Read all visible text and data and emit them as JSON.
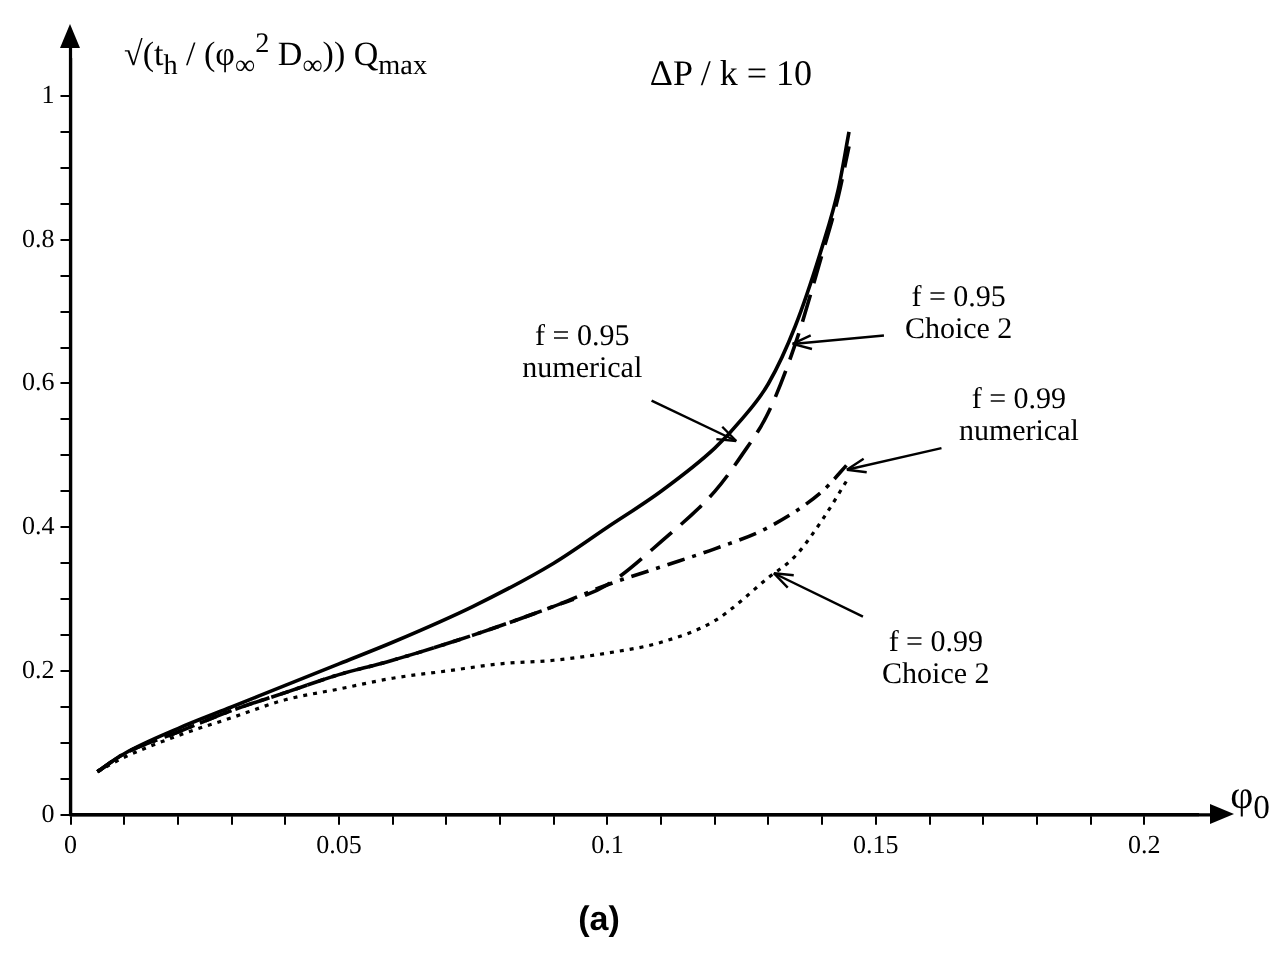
{
  "chart_data": {
    "type": "line",
    "title": "ΔP / k = 10",
    "xlabel": "φ$_{0}$",
    "ylabel": "√(t$_{h}$ / (φ$_{∞}$$^{2}$ D$_{∞}$)) Q$_{max}$",
    "xlim": [
      0,
      0.21
    ],
    "xticks": [
      0,
      {
        "value": 0.01,
        "label": null
      },
      {
        "value": 0.02,
        "label": null
      },
      {
        "value": 0.03,
        "label": null
      },
      {
        "value": 0.04,
        "label": null
      },
      0.05,
      {
        "value": 0.06,
        "label": null
      },
      {
        "value": 0.07,
        "label": null
      },
      {
        "value": 0.08,
        "label": null
      },
      {
        "value": 0.09,
        "label": null
      },
      0.1,
      {
        "value": 0.11,
        "label": null
      },
      {
        "value": 0.12,
        "label": null
      },
      {
        "value": 0.13,
        "label": null
      },
      {
        "value": 0.14,
        "label": null
      },
      0.15,
      {
        "value": 0.16,
        "label": null
      },
      {
        "value": 0.17,
        "label": null
      },
      {
        "value": 0.18,
        "label": null
      },
      {
        "value": 0.19,
        "label": null
      },
      0.2
    ],
    "ylim": [
      0,
      1.05
    ],
    "yticks": [
      0,
      {
        "value": 0.05,
        "label": null
      },
      {
        "value": 0.1,
        "label": null
      },
      {
        "value": 0.15,
        "label": null
      },
      0.2,
      {
        "value": 0.25,
        "label": null
      },
      {
        "value": 0.3,
        "label": null
      },
      {
        "value": 0.35,
        "label": null
      },
      0.4,
      {
        "value": 0.45,
        "label": null
      },
      {
        "value": 0.5,
        "label": null
      },
      {
        "value": 0.55,
        "label": null
      },
      0.6,
      {
        "value": 0.65,
        "label": null
      },
      {
        "value": 0.7,
        "label": null
      },
      {
        "value": 0.75,
        "label": null
      },
      0.8,
      {
        "value": 0.85,
        "label": null
      },
      {
        "value": 0.9,
        "label": null
      },
      {
        "value": 0.95,
        "label": null
      },
      1
    ],
    "grid": false,
    "legend": false,
    "marker": "none",
    "series": [
      {
        "color": "#000000",
        "line_style": "solid",
        "x": [
          0.005,
          0.01,
          0.02,
          0.03,
          0.04,
          0.05,
          0.06,
          0.075,
          0.09,
          0.1,
          0.11,
          0.12,
          0.125,
          0.13,
          0.135,
          0.14,
          0.143,
          0.145
        ],
        "values": [
          0.06,
          0.085,
          0.12,
          0.15,
          0.18,
          0.21,
          0.24,
          0.29,
          0.35,
          0.4,
          0.45,
          0.51,
          0.55,
          0.6,
          0.68,
          0.79,
          0.87,
          0.95
        ]
      },
      {
        "color": "#000000",
        "line_style": "dashed",
        "x": [
          0.005,
          0.01,
          0.02,
          0.03,
          0.04,
          0.05,
          0.06,
          0.075,
          0.09,
          0.1,
          0.11,
          0.12,
          0.125,
          0.13,
          0.135,
          0.14,
          0.143,
          0.145
        ],
        "values": [
          0.06,
          0.085,
          0.115,
          0.145,
          0.17,
          0.195,
          0.215,
          0.25,
          0.29,
          0.32,
          0.38,
          0.45,
          0.5,
          0.56,
          0.655,
          0.78,
          0.86,
          0.93
        ]
      },
      {
        "color": "#000000",
        "line_style": "dashed",
        "x": [
          0.005,
          0.01,
          0.02,
          0.03,
          0.04,
          0.05,
          0.06,
          0.075,
          0.09,
          0.1,
          0.11,
          0.12,
          0.13,
          0.14,
          0.145
        ],
        "values": [
          0.06,
          0.085,
          0.115,
          0.145,
          0.17,
          0.195,
          0.215,
          0.25,
          0.29,
          0.32,
          0.345,
          0.37,
          0.4,
          0.45,
          0.49
        ]
      },
      {
        "color": "#000000",
        "line_style": "dotted",
        "x": [
          0.005,
          0.01,
          0.02,
          0.03,
          0.04,
          0.05,
          0.06,
          0.07,
          0.08,
          0.09,
          0.1,
          0.11,
          0.12,
          0.13,
          0.135,
          0.14,
          0.145
        ],
        "values": [
          0.06,
          0.08,
          0.11,
          0.135,
          0.16,
          0.175,
          0.19,
          0.2,
          0.21,
          0.215,
          0.225,
          0.24,
          0.27,
          0.33,
          0.36,
          0.41,
          0.47
        ]
      }
    ],
    "annotations": [
      {
        "text": "f = 0.95\nnumerical",
        "x": 0.124,
        "y": 0.52
      },
      {
        "text": "f = 0.95\nChoice 2",
        "x": 0.1345,
        "y": 0.655
      },
      {
        "text": "f = 0.99\nnumerical",
        "x": 0.1446,
        "y": 0.48
      },
      {
        "text": "f = 0.99\nChoice 2",
        "x": 0.131,
        "y": 0.336
      },
      "(a)"
    ]
  }
}
